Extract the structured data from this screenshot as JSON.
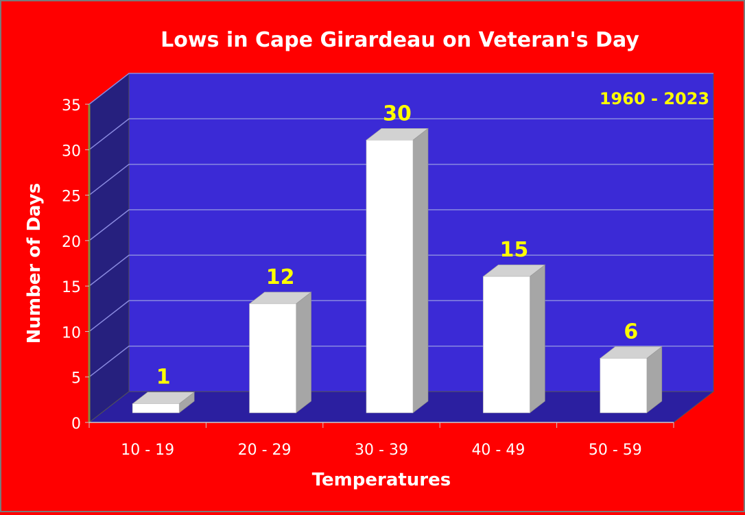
{
  "chart_data": {
    "type": "bar",
    "title": "Lows in Cape Girardeau on Veteran's Day",
    "annotation": "1960 - 2023",
    "xlabel": "Temperatures",
    "ylabel": "Number of Days",
    "categories": [
      "10 - 19",
      "20 - 29",
      "30 - 39",
      "40 - 49",
      "50 - 59"
    ],
    "values": [
      1,
      12,
      30,
      15,
      6
    ],
    "ylim": [
      0,
      35
    ],
    "yticks": [
      0,
      5,
      10,
      15,
      20,
      25,
      30,
      35
    ],
    "grid": true,
    "legend": "none",
    "data_labels": true,
    "colors": {
      "background": "#ff0000",
      "back_wall": "#3b2ad6",
      "side_wall": "#26207e",
      "floor": "#2b1fa0",
      "gridline": "#8a8ae0",
      "bar_front": "#ffffff",
      "bar_top": "#d2d2d2",
      "bar_side": "#a6a6a6",
      "text": "#ffffff",
      "data_label": "#ffff00"
    }
  }
}
